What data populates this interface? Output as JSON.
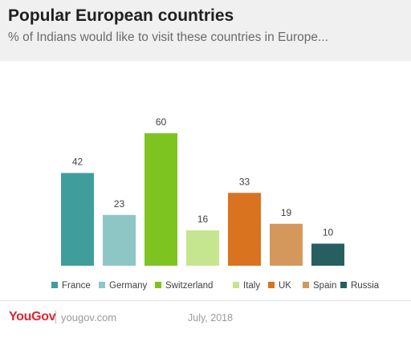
{
  "header": {
    "title": "Popular European countries",
    "subtitle": "% of Indians would like to visit these countries in Europe..."
  },
  "footer": {
    "logo": "YouGov",
    "site": "yougov.com",
    "date": "July, 2018"
  },
  "chart_data": {
    "type": "bar",
    "categories": [
      "France",
      "Germany",
      "Switzerland",
      "Italy",
      "UK",
      "Spain",
      "Russia"
    ],
    "values": [
      42,
      23,
      60,
      16,
      33,
      19,
      10
    ],
    "colors": [
      "#3f9e9c",
      "#8ec6c6",
      "#7dc421",
      "#c5e68e",
      "#d9731f",
      "#d4985c",
      "#275e5f"
    ],
    "ylim": [
      0,
      60
    ],
    "grid": false,
    "legend_position": "bottom",
    "title": "",
    "xlabel": "",
    "ylabel": ""
  }
}
